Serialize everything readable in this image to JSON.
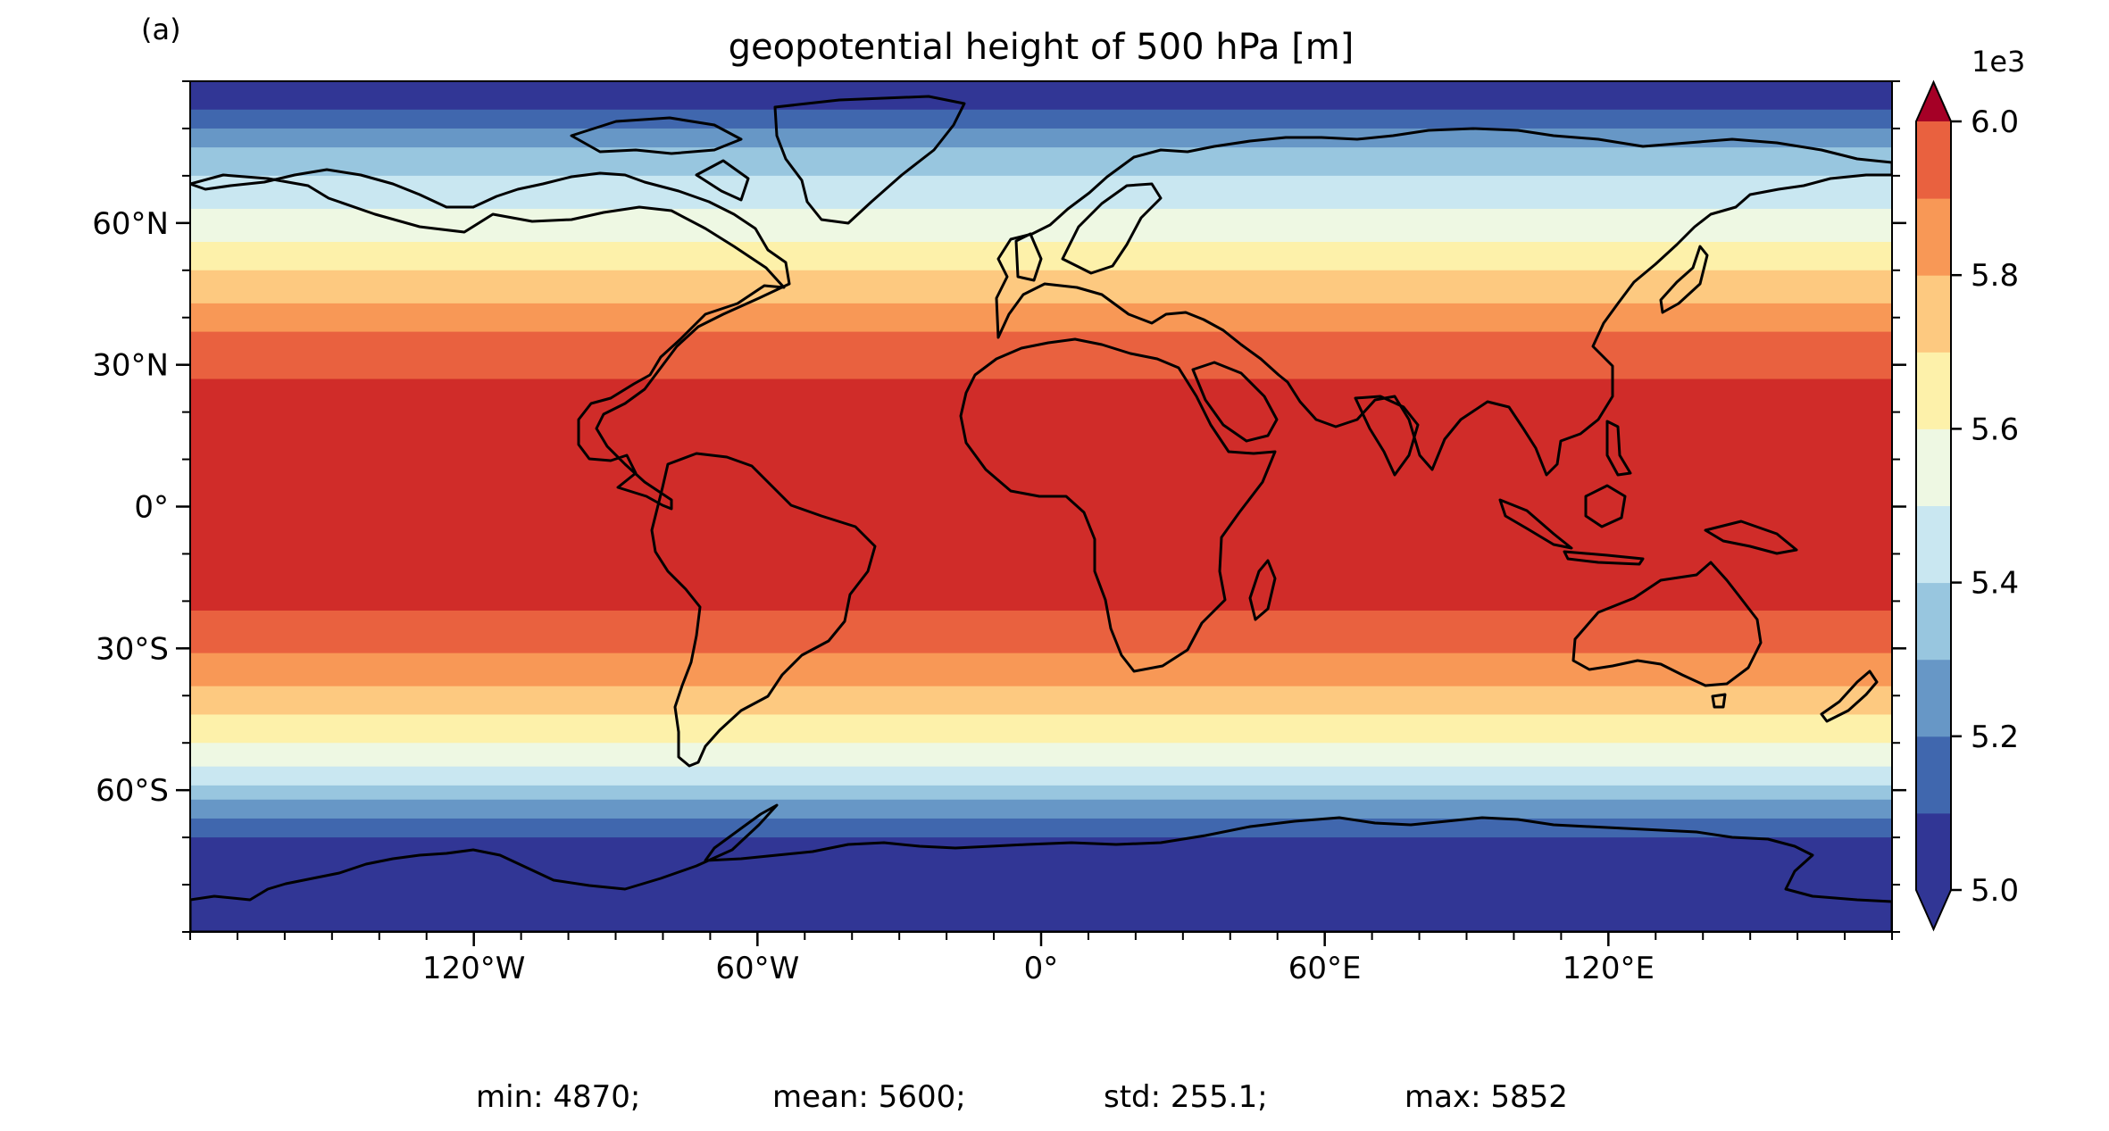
{
  "panel_label": "(a)",
  "title": "geopotential height of 500 hPa [m]",
  "projection": "PlateCarree",
  "map": {
    "lon_range": [
      -180,
      180
    ],
    "lat_range": [
      -90,
      90
    ],
    "x_ticks": [
      {
        "lon": -120,
        "label": "120°W"
      },
      {
        "lon": -60,
        "label": "60°W"
      },
      {
        "lon": 0,
        "label": "0°"
      },
      {
        "lon": 60,
        "label": "60°E"
      },
      {
        "lon": 120,
        "label": "120°E"
      }
    ],
    "y_ticks": [
      {
        "lat": 60,
        "label": "60°N"
      },
      {
        "lat": 30,
        "label": "30°N"
      },
      {
        "lat": 0,
        "label": "0°"
      },
      {
        "lat": -30,
        "label": "30°S"
      },
      {
        "lat": -60,
        "label": "60°S"
      }
    ],
    "minor_tick_step_deg": 10,
    "coastlines": true,
    "field_bands": [
      {
        "lat": [
          84,
          90
        ],
        "level": 0
      },
      {
        "lat": [
          80,
          84
        ],
        "level": 1
      },
      {
        "lat": [
          76,
          80
        ],
        "level": 2
      },
      {
        "lat": [
          70,
          76
        ],
        "level": 3
      },
      {
        "lat": [
          63,
          70
        ],
        "level": 4
      },
      {
        "lat": [
          56,
          63
        ],
        "level": 5
      },
      {
        "lat": [
          50,
          56
        ],
        "level": 6
      },
      {
        "lat": [
          43,
          50
        ],
        "level": 7
      },
      {
        "lat": [
          37,
          43
        ],
        "level": 8
      },
      {
        "lat": [
          27,
          37
        ],
        "level": 9
      },
      {
        "lat": [
          -22,
          27
        ],
        "level": 10
      },
      {
        "lat": [
          -31,
          -22
        ],
        "level": 9
      },
      {
        "lat": [
          -38,
          -31
        ],
        "level": 8
      },
      {
        "lat": [
          -44,
          -38
        ],
        "level": 7
      },
      {
        "lat": [
          -50,
          -44
        ],
        "level": 6
      },
      {
        "lat": [
          -55,
          -50
        ],
        "level": 5
      },
      {
        "lat": [
          -59,
          -55
        ],
        "level": 4
      },
      {
        "lat": [
          -62,
          -59
        ],
        "level": 3
      },
      {
        "lat": [
          -66,
          -62
        ],
        "level": 2
      },
      {
        "lat": [
          -70,
          -66
        ],
        "level": 1
      },
      {
        "lat": [
          -90,
          -70
        ],
        "level": 0
      }
    ]
  },
  "colorbar": {
    "multiplier_label": "1e3",
    "levels": [
      5.0,
      5.1,
      5.2,
      5.3,
      5.4,
      5.5,
      5.6,
      5.7,
      5.8,
      5.9,
      6.0
    ],
    "tick_values": [
      5.0,
      5.2,
      5.4,
      5.6,
      5.8,
      6.0
    ],
    "tick_labels": [
      "5.0",
      "5.2",
      "5.4",
      "5.6",
      "5.8",
      "6.0"
    ],
    "extend": "both",
    "colors": [
      "#313695",
      "#4067ae",
      "#6797c6",
      "#98c6df",
      "#c9e7f1",
      "#eef8e3",
      "#fdf1aa",
      "#fdc980",
      "#f89856",
      "#e9613f",
      "#d02c29"
    ],
    "under_color": "#313695",
    "over_color": "#a50026"
  },
  "stats": {
    "min": "min: 4870;",
    "mean": "mean: 5600;",
    "std": "std: 255.1;",
    "max": "max: 5852"
  }
}
